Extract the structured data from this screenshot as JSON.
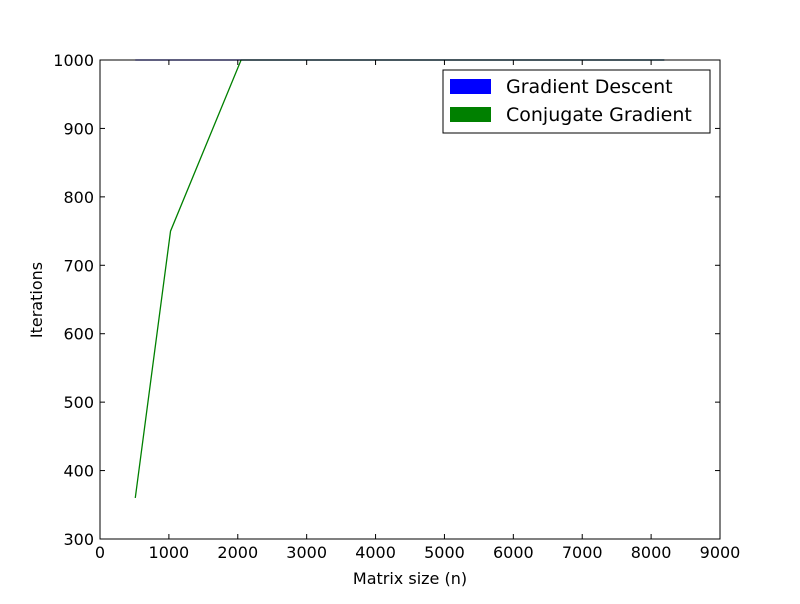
{
  "chart_data": {
    "type": "line",
    "title": "",
    "xlabel": "Matrix size (n)",
    "ylabel": "Iterations",
    "xlim": [
      0,
      9000
    ],
    "ylim": [
      300,
      1000
    ],
    "xticks": [
      0,
      1000,
      2000,
      3000,
      4000,
      5000,
      6000,
      7000,
      8000,
      9000
    ],
    "yticks": [
      300,
      400,
      500,
      600,
      700,
      800,
      900,
      1000
    ],
    "grid": false,
    "legend_position": "top-right",
    "series": [
      {
        "name": "Gradient Descent",
        "color": "#0000ff",
        "x": [
          512,
          1024,
          2048,
          4096,
          8192
        ],
        "y": [
          1000,
          1000,
          1000,
          1000,
          1000
        ]
      },
      {
        "name": "Conjugate Gradient",
        "color": "#008000",
        "x": [
          512,
          1024,
          2048,
          4096,
          8192
        ],
        "y": [
          360,
          750,
          1000,
          1000,
          1000
        ]
      }
    ]
  }
}
